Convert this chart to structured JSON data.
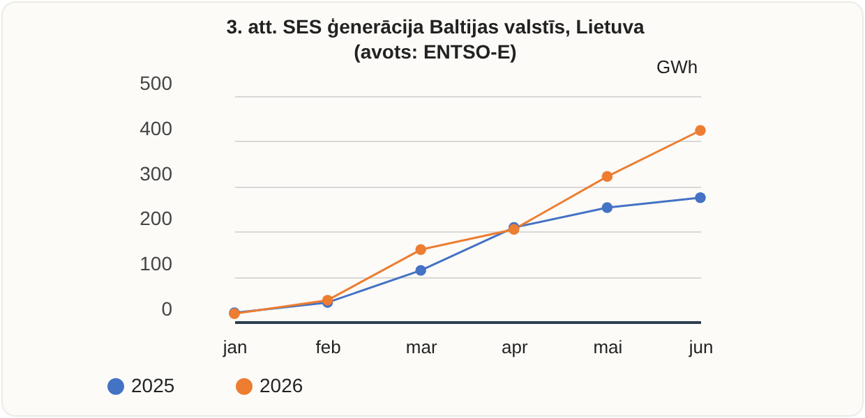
{
  "chart_data": {
    "type": "line",
    "title": "3. att. SES ģenerācija Baltijas valstīs, Lietuva (avots: ENTSO-E)",
    "ylabel": "GWh",
    "categories": [
      "jan",
      "feb",
      "mar",
      "apr",
      "mai",
      "jun"
    ],
    "series": [
      {
        "name": "2025",
        "color": "#4472c4",
        "values": [
          20,
          43,
          114,
          209,
          253,
          275
        ]
      },
      {
        "name": "2026",
        "color": "#ed7d31",
        "values": [
          18,
          48,
          160,
          205,
          322,
          424
        ]
      }
    ],
    "ylim": [
      0,
      500
    ],
    "yticks": [
      0,
      100,
      200,
      300,
      400,
      500
    ],
    "grid": "y",
    "legend": "bottom left",
    "marker": "circle",
    "line_style": "solid"
  }
}
